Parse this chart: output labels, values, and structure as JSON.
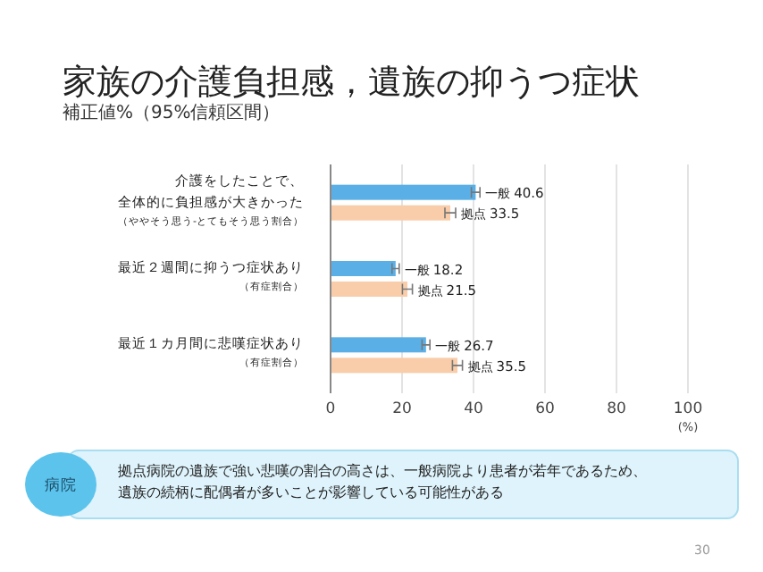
{
  "chart_data": {
    "type": "bar",
    "orientation": "horizontal",
    "title": "家族の介護負担感，遺族の抑うつ症状",
    "subtitle": "補正値%（95%信頼区間）",
    "xlabel": "(%)",
    "categories": [
      "介護をしたことで、全体的に負担感が大きかった（ややそう思う-とてもそう思う割合）",
      "最近２週間に抑うつ症状あり（有症割合）",
      "最近１カ月間に悲嘆症状あり（有症割合）"
    ],
    "series": [
      {
        "name": "一般",
        "color": "#5aafe6",
        "values": [
          40.6,
          18.2,
          26.7
        ],
        "value_labels": [
          "40.6",
          "18.2",
          "26.7"
        ],
        "errors": [
          1.2,
          1.0,
          1.1
        ]
      },
      {
        "name": "拠点",
        "color": "#f9cda9",
        "values": [
          33.5,
          21.5,
          35.5
        ],
        "value_labels": [
          "33.5",
          "21.5",
          "35.5"
        ],
        "errors": [
          1.5,
          1.4,
          1.4
        ]
      }
    ],
    "xlim": [
      0,
      100
    ],
    "xticks": [
      0,
      20,
      40,
      60,
      80,
      100
    ],
    "grid": "x",
    "annotations": [
      "病院",
      "拠点病院の遺族で強い悲嘆の割合の高さは、一般病院より患者が若年であるため、遺族の続柄に配偶者が多いことが影響している可能性がある",
      "30"
    ]
  }
}
